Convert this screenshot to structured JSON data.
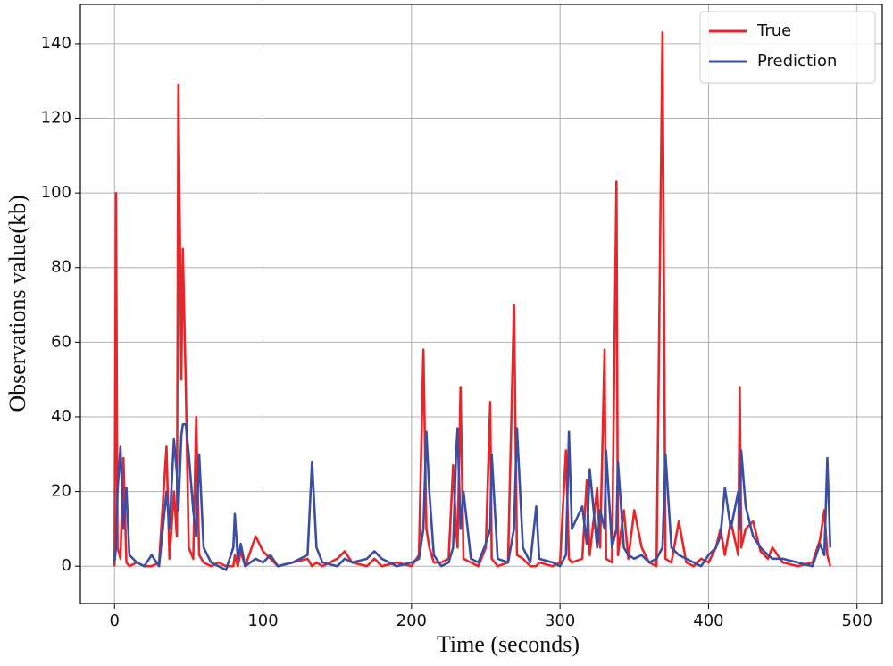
{
  "chart_data": {
    "type": "line",
    "x_label": "Time (seconds)",
    "y_label": "Observations value(kb)",
    "x": [
      0,
      1,
      2,
      4,
      6,
      8,
      10,
      15,
      20,
      25,
      30,
      35,
      37,
      40,
      42,
      43,
      45,
      46,
      48,
      50,
      53,
      55,
      57,
      60,
      65,
      70,
      75,
      80,
      81,
      83,
      85,
      88,
      95,
      100,
      105,
      110,
      120,
      130,
      133,
      136,
      140,
      150,
      155,
      160,
      170,
      175,
      180,
      190,
      200,
      205,
      208,
      210,
      212,
      215,
      220,
      225,
      228,
      230,
      231,
      233,
      235,
      240,
      245,
      250,
      253,
      254,
      258,
      265,
      269,
      271,
      275,
      280,
      284,
      286,
      295,
      300,
      304,
      306,
      308,
      315,
      318,
      320,
      325,
      327,
      330,
      331,
      335,
      338,
      339,
      343,
      346,
      350,
      355,
      360,
      365,
      369,
      371,
      375,
      380,
      385,
      390,
      395,
      400,
      405,
      408,
      411,
      415,
      420,
      421,
      422,
      425,
      430,
      435,
      440,
      443,
      450,
      460,
      470,
      475,
      478,
      480,
      482
    ],
    "series": [
      {
        "name": "True",
        "color": "#e8262a",
        "values": [
          0,
          100,
          5,
          2,
          29,
          1,
          0,
          1,
          0,
          0,
          1,
          32,
          2,
          20,
          8,
          129,
          50,
          85,
          48,
          5,
          2,
          40,
          3,
          1,
          0,
          1,
          0,
          0,
          3,
          0,
          4,
          0,
          8,
          4,
          2,
          0,
          1,
          2,
          0,
          1,
          0,
          2,
          4,
          1,
          0,
          2,
          0,
          1,
          0,
          3,
          58,
          10,
          5,
          1,
          1,
          2,
          27,
          10,
          5,
          48,
          2,
          1,
          0,
          5,
          44,
          2,
          0,
          1,
          70,
          3,
          2,
          0,
          0,
          1,
          0,
          1,
          31,
          2,
          1,
          2,
          23,
          3,
          21,
          5,
          58,
          2,
          1,
          103,
          3,
          15,
          2,
          15,
          5,
          1,
          0,
          143,
          2,
          1,
          12,
          1,
          0,
          2,
          1,
          5,
          10,
          3,
          12,
          3,
          48,
          5,
          10,
          12,
          4,
          2,
          5,
          1,
          0,
          1,
          7,
          15,
          3,
          0
        ]
      },
      {
        "name": "Prediction",
        "color": "#3b4ea3",
        "values": [
          1,
          5,
          20,
          32,
          10,
          21,
          3,
          1,
          0,
          3,
          0,
          20,
          10,
          34,
          25,
          15,
          35,
          38,
          38,
          30,
          15,
          8,
          30,
          5,
          1,
          0,
          -1,
          5,
          14,
          2,
          6,
          0,
          2,
          1,
          3,
          0,
          1,
          3,
          28,
          5,
          1,
          0,
          2,
          1,
          2,
          4,
          2,
          0,
          1,
          2,
          10,
          36,
          20,
          3,
          0,
          1,
          5,
          30,
          37,
          10,
          20,
          2,
          1,
          6,
          10,
          30,
          2,
          1,
          10,
          37,
          5,
          1,
          16,
          2,
          1,
          0,
          3,
          36,
          10,
          16,
          6,
          26,
          5,
          15,
          10,
          31,
          5,
          10,
          28,
          5,
          3,
          2,
          3,
          1,
          2,
          5,
          30,
          5,
          3,
          2,
          1,
          0,
          3,
          5,
          8,
          21,
          10,
          20,
          10,
          31,
          16,
          8,
          5,
          3,
          2,
          2,
          1,
          0,
          6,
          3,
          29,
          5
        ]
      }
    ],
    "xlim": [
      -23,
      517
    ],
    "ylim": [
      -10,
      150.5
    ],
    "xticks": [
      0,
      100,
      200,
      300,
      400,
      500
    ],
    "yticks": [
      0,
      20,
      40,
      60,
      80,
      100,
      120,
      140
    ],
    "grid": true,
    "legend": "upper right"
  }
}
